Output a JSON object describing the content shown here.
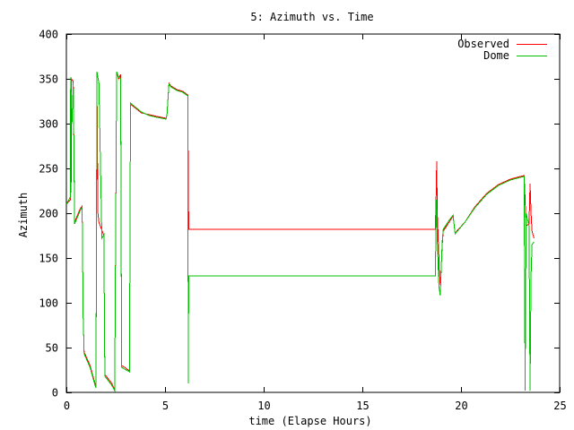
{
  "chart_data": {
    "type": "line",
    "title": "5: Azimuth vs. Time",
    "xlabel": "time (Elapse Hours)",
    "ylabel": "Azimuth",
    "xlim": [
      0,
      25
    ],
    "ylim": [
      0,
      400
    ],
    "xticks": [
      "0",
      "5",
      "10",
      "15",
      "20",
      "25"
    ],
    "yticks": [
      "0",
      "50",
      "100",
      "150",
      "200",
      "250",
      "300",
      "350",
      "400"
    ],
    "grid": false,
    "legend": "top-right",
    "series": [
      {
        "name": "Observed",
        "color": "#ff0000",
        "points": [
          [
            0.0,
            210
          ],
          [
            0.2,
            215
          ],
          [
            0.25,
            240
          ],
          [
            0.25,
            350
          ],
          [
            0.35,
            347
          ],
          [
            0.42,
            190
          ],
          [
            0.7,
            205
          ],
          [
            0.8,
            208
          ],
          [
            0.85,
            85
          ],
          [
            0.9,
            45
          ],
          [
            1.2,
            30
          ],
          [
            1.45,
            10
          ],
          [
            1.5,
            5
          ],
          [
            1.55,
            340
          ],
          [
            1.6,
            200
          ],
          [
            1.65,
            190
          ],
          [
            1.85,
            178
          ],
          [
            1.9,
            175
          ],
          [
            1.95,
            20
          ],
          [
            2.3,
            10
          ],
          [
            2.45,
            3
          ],
          [
            2.55,
            358
          ],
          [
            2.65,
            350
          ],
          [
            2.75,
            355
          ],
          [
            2.8,
            30
          ],
          [
            2.95,
            28
          ],
          [
            3.2,
            24
          ],
          [
            3.25,
            322
          ],
          [
            3.35,
            320
          ],
          [
            3.8,
            312
          ],
          [
            4.2,
            310
          ],
          [
            4.6,
            308
          ],
          [
            5.05,
            306
          ],
          [
            5.1,
            310
          ],
          [
            5.2,
            345
          ],
          [
            5.3,
            342
          ],
          [
            5.6,
            338
          ],
          [
            5.9,
            336
          ],
          [
            6.15,
            332
          ],
          [
            6.2,
            182
          ],
          [
            18.7,
            182
          ],
          [
            18.75,
            230
          ],
          [
            18.77,
            258
          ],
          [
            18.8,
            200
          ],
          [
            18.88,
            150
          ],
          [
            18.9,
            135
          ],
          [
            18.95,
            120
          ],
          [
            19.0,
            140
          ],
          [
            19.05,
            165
          ],
          [
            19.1,
            180
          ],
          [
            19.4,
            190
          ],
          [
            19.6,
            197
          ],
          [
            19.7,
            178
          ],
          [
            20.2,
            190
          ],
          [
            20.7,
            207
          ],
          [
            21.3,
            222
          ],
          [
            21.9,
            232
          ],
          [
            22.5,
            238
          ],
          [
            23.0,
            241
          ],
          [
            23.2,
            242
          ],
          [
            23.25,
            215
          ],
          [
            23.3,
            186
          ],
          [
            23.45,
            188
          ],
          [
            23.5,
            233
          ],
          [
            23.55,
            200
          ],
          [
            23.6,
            180
          ],
          [
            23.7,
            172
          ]
        ]
      },
      {
        "name": "Dome",
        "color": "#00c000",
        "points": [
          [
            0.0,
            210
          ],
          [
            0.2,
            218
          ],
          [
            0.22,
            352
          ],
          [
            0.28,
            300
          ],
          [
            0.35,
            345
          ],
          [
            0.42,
            188
          ],
          [
            0.7,
            203
          ],
          [
            0.8,
            207
          ],
          [
            0.85,
            85
          ],
          [
            0.9,
            43
          ],
          [
            1.2,
            28
          ],
          [
            1.45,
            8
          ],
          [
            1.5,
            5
          ],
          [
            1.55,
            358
          ],
          [
            1.65,
            345
          ],
          [
            1.8,
            172
          ],
          [
            1.9,
            176
          ],
          [
            1.95,
            18
          ],
          [
            2.3,
            8
          ],
          [
            2.45,
            2
          ],
          [
            2.55,
            358
          ],
          [
            2.65,
            352
          ],
          [
            2.75,
            350
          ],
          [
            2.8,
            28
          ],
          [
            2.95,
            26
          ],
          [
            3.2,
            23
          ],
          [
            3.25,
            323
          ],
          [
            3.35,
            321
          ],
          [
            3.8,
            313
          ],
          [
            4.2,
            309
          ],
          [
            4.6,
            307
          ],
          [
            5.05,
            305
          ],
          [
            5.1,
            310
          ],
          [
            5.2,
            344
          ],
          [
            5.3,
            341
          ],
          [
            5.6,
            337
          ],
          [
            5.9,
            335
          ],
          [
            6.15,
            331
          ],
          [
            6.18,
            10
          ],
          [
            6.2,
            130
          ],
          [
            18.7,
            130
          ],
          [
            18.75,
            215
          ],
          [
            18.8,
            170
          ],
          [
            18.88,
            118
          ],
          [
            18.95,
            108
          ],
          [
            19.0,
            140
          ],
          [
            19.05,
            168
          ],
          [
            19.1,
            182
          ],
          [
            19.4,
            192
          ],
          [
            19.6,
            198
          ],
          [
            19.7,
            177
          ],
          [
            20.2,
            190
          ],
          [
            20.7,
            206
          ],
          [
            21.3,
            221
          ],
          [
            21.9,
            231
          ],
          [
            22.5,
            237
          ],
          [
            23.0,
            240
          ],
          [
            23.2,
            241
          ],
          [
            23.25,
            2
          ],
          [
            23.3,
            200
          ],
          [
            23.45,
            186
          ],
          [
            23.5,
            2
          ],
          [
            23.55,
            130
          ],
          [
            23.6,
            165
          ],
          [
            23.7,
            168
          ]
        ]
      }
    ]
  }
}
